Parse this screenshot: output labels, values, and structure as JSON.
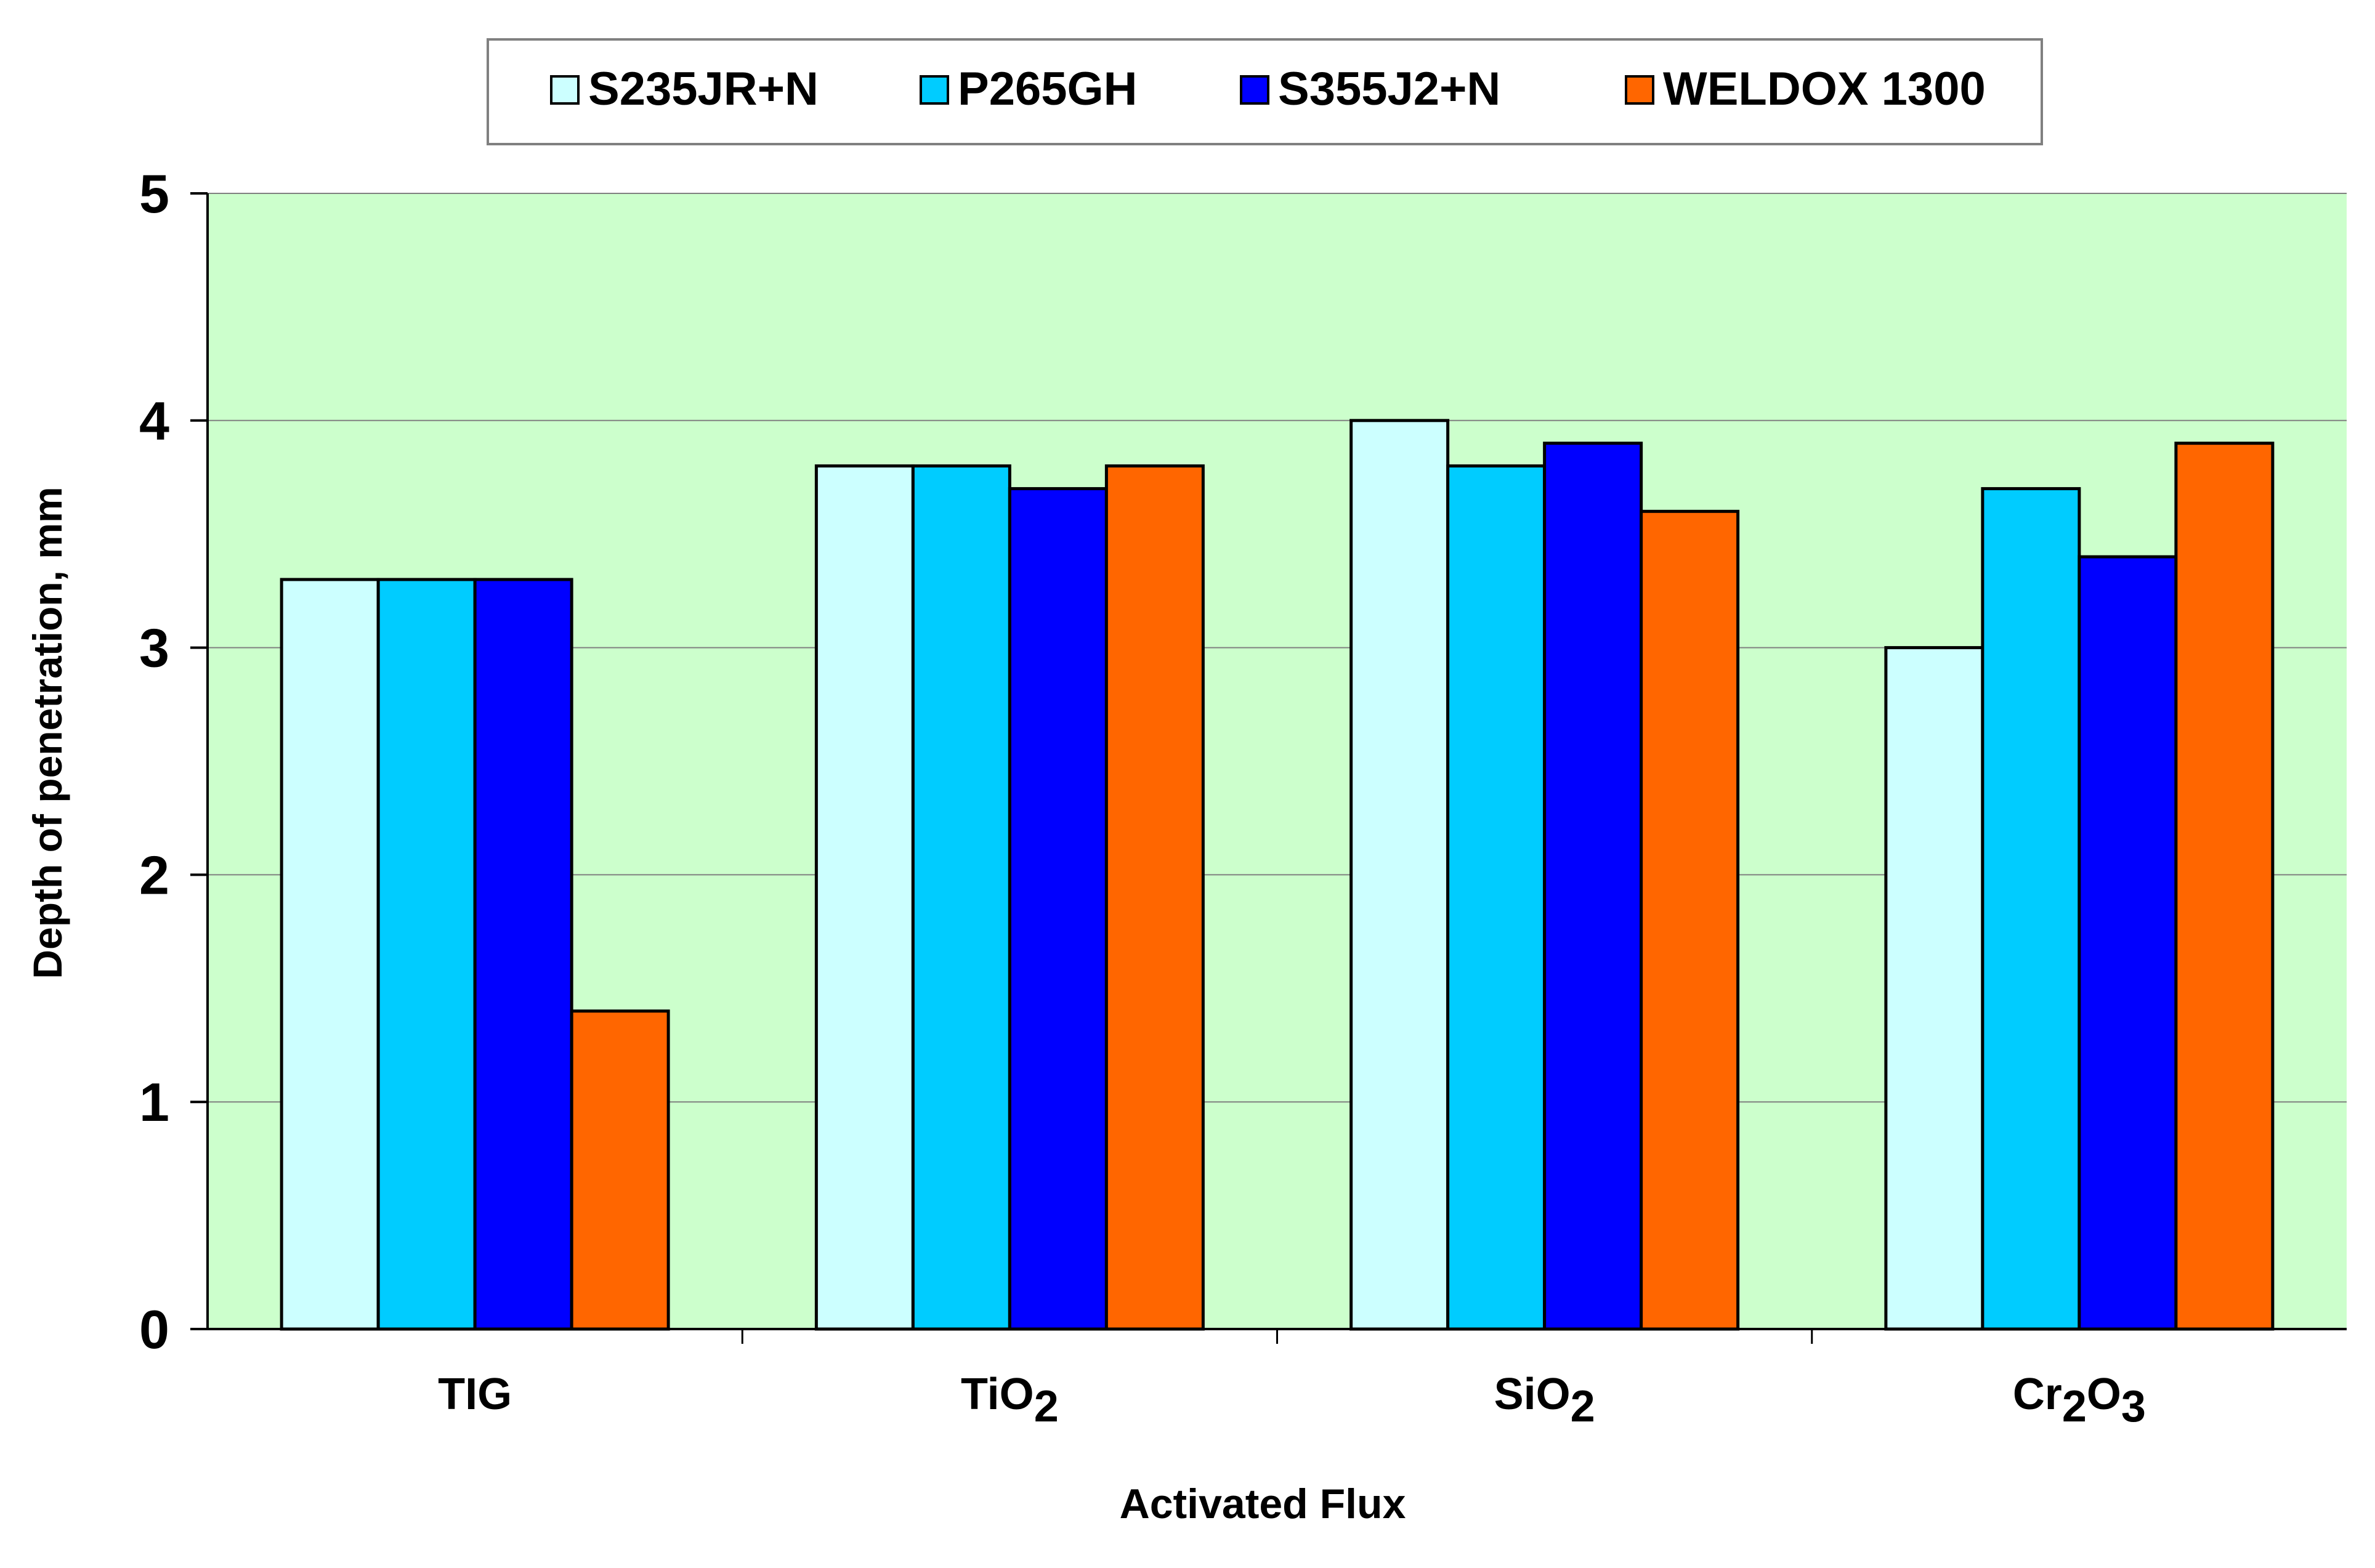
{
  "chart_data": {
    "type": "bar",
    "categories": [
      "TIG",
      "TiO2",
      "SiO2",
      "Cr2O3"
    ],
    "category_display": [
      [
        {
          "t": "TIG",
          "sub": false
        }
      ],
      [
        {
          "t": "TiO",
          "sub": false
        },
        {
          "t": "2",
          "sub": true
        }
      ],
      [
        {
          "t": "SiO",
          "sub": false
        },
        {
          "t": "2",
          "sub": true
        }
      ],
      [
        {
          "t": "Cr",
          "sub": false
        },
        {
          "t": "2",
          "sub": true
        },
        {
          "t": "O",
          "sub": false
        },
        {
          "t": "3",
          "sub": true
        }
      ]
    ],
    "series": [
      {
        "name": "S235JR+N",
        "color": "#CCFFFF",
        "values": [
          3.3,
          3.8,
          4.0,
          3.0
        ]
      },
      {
        "name": "P265GH",
        "color": "#00CCFF",
        "values": [
          3.3,
          3.8,
          3.8,
          3.7
        ]
      },
      {
        "name": "S355J2+N",
        "color": "#0000FF",
        "values": [
          3.3,
          3.7,
          3.9,
          3.4
        ]
      },
      {
        "name": "WELDOX 1300",
        "color": "#FF6600",
        "values": [
          1.4,
          3.8,
          3.6,
          3.9
        ]
      }
    ],
    "xlabel": "Activated Flux",
    "ylabel": "Depth of penetration, mm",
    "ylim": [
      0,
      5
    ],
    "yticks": [
      "0",
      "1",
      "2",
      "3",
      "4",
      "5"
    ],
    "grid": true,
    "legend_position": "top",
    "plot_background": "#CCFFCC"
  }
}
